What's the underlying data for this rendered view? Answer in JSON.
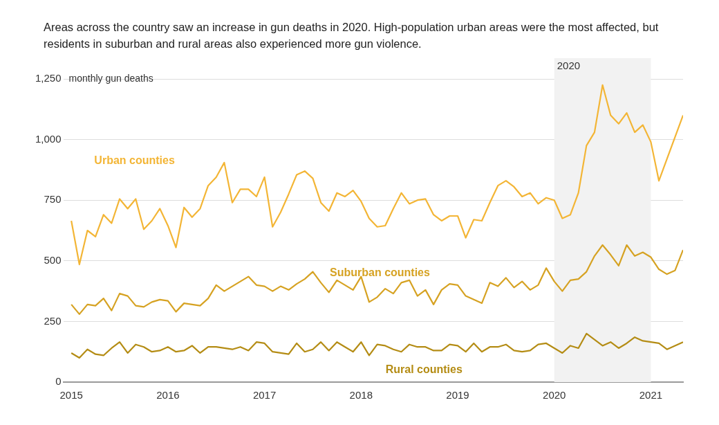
{
  "chart_data": {
    "type": "line",
    "title": "Areas across the country saw an increase in gun deaths in 2020. High-population urban areas were the most affected, but residents in suburban and rural areas also experienced more gun violence.",
    "ylabel": "monthly gun deaths",
    "x": [
      "2015-01",
      "2015-02",
      "2015-03",
      "2015-04",
      "2015-05",
      "2015-06",
      "2015-07",
      "2015-08",
      "2015-09",
      "2015-10",
      "2015-11",
      "2015-12",
      "2016-01",
      "2016-02",
      "2016-03",
      "2016-04",
      "2016-05",
      "2016-06",
      "2016-07",
      "2016-08",
      "2016-09",
      "2016-10",
      "2016-11",
      "2016-12",
      "2017-01",
      "2017-02",
      "2017-03",
      "2017-04",
      "2017-05",
      "2017-06",
      "2017-07",
      "2017-08",
      "2017-09",
      "2017-10",
      "2017-11",
      "2017-12",
      "2018-01",
      "2018-02",
      "2018-03",
      "2018-04",
      "2018-05",
      "2018-06",
      "2018-07",
      "2018-08",
      "2018-09",
      "2018-10",
      "2018-11",
      "2018-12",
      "2019-01",
      "2019-02",
      "2019-03",
      "2019-04",
      "2019-05",
      "2019-06",
      "2019-07",
      "2019-08",
      "2019-09",
      "2019-10",
      "2019-11",
      "2019-12",
      "2020-01",
      "2020-02",
      "2020-03",
      "2020-04",
      "2020-05",
      "2020-06",
      "2020-07",
      "2020-08",
      "2020-09",
      "2020-10",
      "2020-11",
      "2020-12",
      "2021-01",
      "2021-02",
      "2021-03",
      "2021-04",
      "2021-05"
    ],
    "series": [
      {
        "name": "Urban counties",
        "color": "#f3b535",
        "values": [
          665,
          485,
          625,
          600,
          690,
          655,
          755,
          715,
          755,
          630,
          665,
          715,
          645,
          555,
          720,
          680,
          715,
          810,
          845,
          905,
          740,
          795,
          795,
          765,
          845,
          640,
          700,
          775,
          855,
          870,
          840,
          740,
          705,
          780,
          765,
          790,
          745,
          675,
          640,
          645,
          715,
          780,
          735,
          750,
          755,
          690,
          665,
          685,
          685,
          595,
          670,
          665,
          740,
          810,
          830,
          805,
          765,
          780,
          735,
          760,
          750,
          675,
          690,
          780,
          975,
          1030,
          1225,
          1100,
          1065,
          1110,
          1030,
          1060,
          990,
          830,
          920,
          1010,
          1100
        ]
      },
      {
        "name": "Suburban counties",
        "color": "#d6a222",
        "values": [
          320,
          280,
          320,
          315,
          345,
          295,
          365,
          355,
          315,
          310,
          330,
          340,
          335,
          290,
          325,
          320,
          315,
          345,
          400,
          375,
          395,
          415,
          435,
          400,
          395,
          375,
          395,
          380,
          405,
          425,
          455,
          410,
          370,
          420,
          400,
          380,
          435,
          330,
          350,
          385,
          365,
          410,
          420,
          355,
          380,
          320,
          380,
          405,
          400,
          355,
          340,
          325,
          410,
          395,
          430,
          390,
          415,
          380,
          400,
          470,
          415,
          375,
          420,
          425,
          455,
          520,
          565,
          525,
          480,
          565,
          520,
          535,
          515,
          465,
          445,
          460,
          545
        ]
      },
      {
        "name": "Rural counties",
        "color": "#b48c14",
        "values": [
          120,
          100,
          135,
          115,
          110,
          140,
          165,
          120,
          155,
          145,
          125,
          130,
          145,
          125,
          130,
          150,
          120,
          145,
          145,
          140,
          135,
          145,
          130,
          165,
          160,
          125,
          120,
          115,
          160,
          125,
          135,
          165,
          130,
          165,
          145,
          125,
          165,
          110,
          155,
          150,
          135,
          125,
          155,
          145,
          145,
          130,
          130,
          155,
          150,
          125,
          160,
          125,
          145,
          145,
          155,
          130,
          125,
          130,
          155,
          160,
          140,
          120,
          150,
          140,
          200,
          175,
          150,
          165,
          140,
          160,
          185,
          170,
          165,
          160,
          135,
          150,
          165
        ]
      }
    ],
    "xlim": [
      "2014-12",
      "2021-05"
    ],
    "xticks": [
      "2015",
      "2016",
      "2017",
      "2018",
      "2019",
      "2020",
      "2021"
    ],
    "ylim": [
      0,
      1250
    ],
    "yticks": [
      0,
      250,
      500,
      750,
      {
        "value": 1000,
        "label": "1,000"
      },
      {
        "value": 1250,
        "label": "1,250"
      }
    ],
    "bands": [
      {
        "axis": "x",
        "from": "2020-01",
        "to": "2021-01",
        "label": "2020",
        "color": "#f2f2f2"
      }
    ],
    "grid": "y",
    "legend": false,
    "marker": "none",
    "line_style": "solid"
  }
}
